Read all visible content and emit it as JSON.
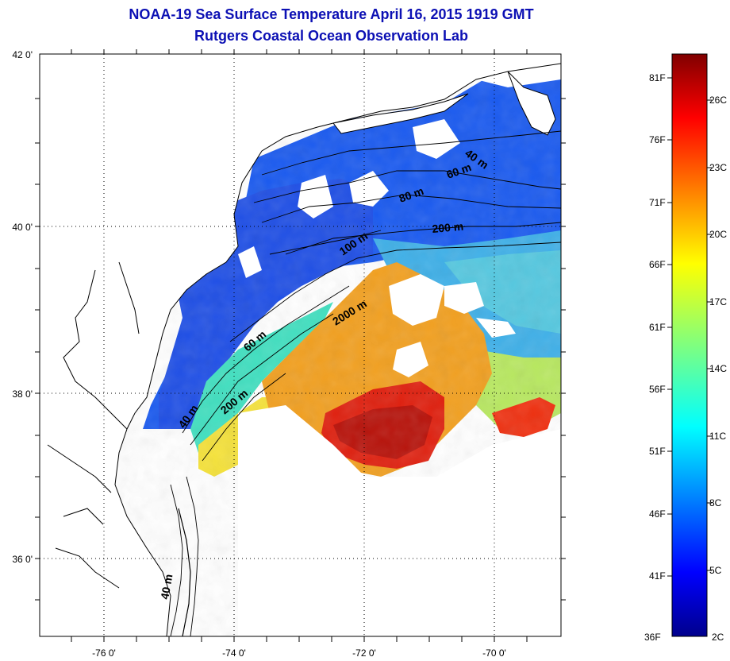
{
  "title": "NOAA-19 Sea Surface Temperature April 16, 2015 1919 GMT",
  "subtitle": "Rutgers Coastal Ocean Observation Lab",
  "axes": {
    "lat_labels": [
      "42 0'",
      "40 0'",
      "38 0'",
      "36 0'"
    ],
    "lon_labels": [
      "-76 0'",
      "-74 0'",
      "-72 0'",
      "-70 0'"
    ]
  },
  "isobath_labels": [
    "40 m",
    "60 m",
    "80 m",
    "200 m",
    "100 m",
    "2000 m",
    "60 m",
    "200 m",
    "40 m",
    "40 m"
  ],
  "colorbar": {
    "fahrenheit": [
      "81F",
      "76F",
      "71F",
      "66F",
      "61F",
      "56F",
      "51F",
      "46F",
      "41F",
      "36F"
    ],
    "celsius": [
      "26C",
      "23C",
      "20C",
      "17C",
      "14C",
      "11C",
      "8C",
      "5C",
      "2C"
    ],
    "min_color": "#00008c",
    "max_color": "#8c0000"
  }
}
